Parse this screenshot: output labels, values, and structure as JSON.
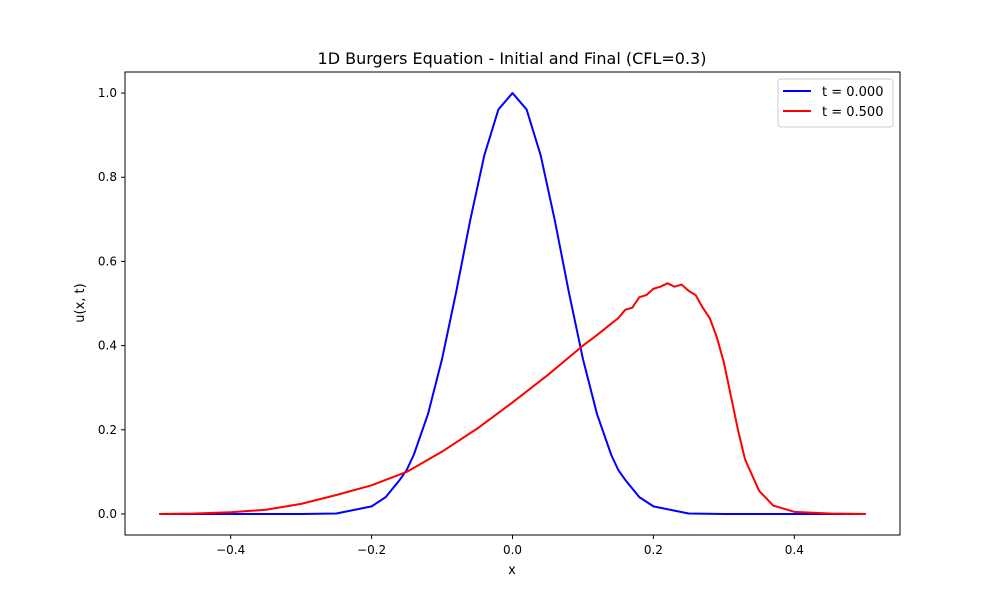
{
  "chart_data": {
    "type": "line",
    "title": "1D Burgers Equation - Initial and Final (CFL=0.3)",
    "xlabel": "x",
    "ylabel": "u(x, t)",
    "xlim": [
      -0.55,
      0.55
    ],
    "ylim": [
      -0.05,
      1.05
    ],
    "x_ticks": [
      -0.4,
      -0.2,
      0.0,
      0.2,
      0.4
    ],
    "x_tick_labels": [
      "−0.4",
      "−0.2",
      "0.0",
      "0.2",
      "0.4"
    ],
    "y_ticks": [
      0.0,
      0.2,
      0.4,
      0.6,
      0.8,
      1.0
    ],
    "y_tick_labels": [
      "0.0",
      "0.2",
      "0.4",
      "0.6",
      "0.8",
      "1.0"
    ],
    "grid": false,
    "legend_position": "top-right",
    "series": [
      {
        "name": "t = 0.000",
        "color": "#0000ff",
        "x": [
          -0.5,
          -0.4,
          -0.3,
          -0.25,
          -0.2,
          -0.18,
          -0.16,
          -0.15,
          -0.14,
          -0.12,
          -0.1,
          -0.08,
          -0.06,
          -0.04,
          -0.02,
          0.0,
          0.02,
          0.04,
          0.06,
          0.08,
          0.1,
          0.12,
          0.14,
          0.15,
          0.16,
          0.18,
          0.2,
          0.25,
          0.3,
          0.4,
          0.5
        ],
        "y": [
          0.0,
          0.0,
          0.0,
          0.001,
          0.018,
          0.04,
          0.081,
          0.105,
          0.141,
          0.237,
          0.368,
          0.527,
          0.698,
          0.852,
          0.961,
          1.0,
          0.961,
          0.852,
          0.698,
          0.527,
          0.368,
          0.237,
          0.141,
          0.105,
          0.081,
          0.04,
          0.018,
          0.001,
          0.0,
          0.0,
          0.0
        ]
      },
      {
        "name": "t = 0.500",
        "color": "#ff0000",
        "x": [
          -0.5,
          -0.45,
          -0.4,
          -0.35,
          -0.3,
          -0.25,
          -0.2,
          -0.15,
          -0.1,
          -0.05,
          0.0,
          0.05,
          0.1,
          0.12,
          0.14,
          0.15,
          0.16,
          0.17,
          0.18,
          0.19,
          0.2,
          0.21,
          0.22,
          0.23,
          0.24,
          0.25,
          0.26,
          0.27,
          0.28,
          0.29,
          0.3,
          0.31,
          0.32,
          0.33,
          0.35,
          0.37,
          0.4,
          0.45,
          0.5
        ],
        "y": [
          0.0,
          0.001,
          0.004,
          0.01,
          0.024,
          0.045,
          0.068,
          0.1,
          0.148,
          0.203,
          0.265,
          0.33,
          0.4,
          0.425,
          0.452,
          0.465,
          0.485,
          0.49,
          0.515,
          0.52,
          0.535,
          0.54,
          0.548,
          0.54,
          0.545,
          0.53,
          0.52,
          0.49,
          0.465,
          0.42,
          0.36,
          0.28,
          0.2,
          0.13,
          0.055,
          0.02,
          0.005,
          0.001,
          0.0
        ]
      }
    ]
  }
}
